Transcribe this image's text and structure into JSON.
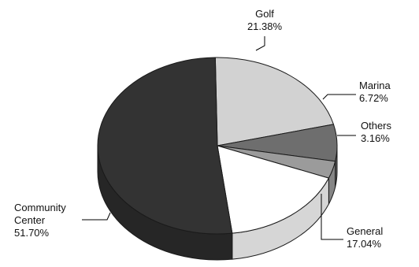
{
  "chart_data": {
    "type": "pie",
    "title": "",
    "three_d": true,
    "slices": [
      {
        "label": "Golf",
        "value": 21.38,
        "value_label": "21.38%",
        "color": "#d2d2d2",
        "side_color": "#b8b8b8",
        "label_lines": [
          "Golf",
          "21.38%"
        ]
      },
      {
        "label": "Marina",
        "value": 6.72,
        "value_label": "6.72%",
        "color": "#6e6e6e",
        "side_color": "#595959",
        "label_lines": [
          "Marina",
          "6.72%"
        ]
      },
      {
        "label": "Others",
        "value": 3.16,
        "value_label": "3.16%",
        "color": "#9b9b9b",
        "side_color": "#858585",
        "label_lines": [
          "Others",
          "3.16%"
        ]
      },
      {
        "label": "General",
        "value": 17.04,
        "value_label": "17.04%",
        "color": "#ffffff",
        "side_color": "#d6d6d6",
        "label_lines": [
          "General",
          "17.04%"
        ]
      },
      {
        "label": "Community Center",
        "value": 51.7,
        "value_label": "51.70%",
        "color": "#333333",
        "side_color": "#262626",
        "label_lines": [
          "Community",
          "Center",
          "51.70%"
        ]
      }
    ]
  }
}
